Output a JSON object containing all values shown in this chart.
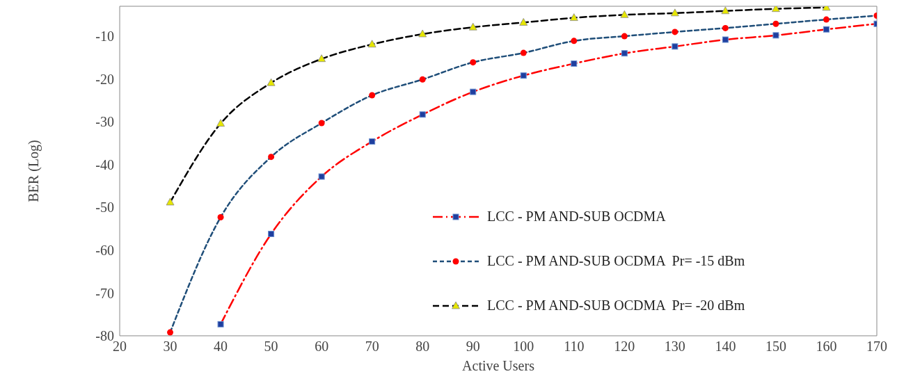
{
  "chart_data": {
    "type": "line",
    "xlabel": "Active Users",
    "ylabel": "BER (Log)",
    "x": [
      30,
      40,
      50,
      60,
      70,
      80,
      90,
      100,
      110,
      120,
      130,
      140,
      150,
      160,
      170
    ],
    "xlim": [
      20,
      170
    ],
    "xticks": [
      20,
      30,
      40,
      50,
      60,
      70,
      80,
      90,
      100,
      110,
      120,
      130,
      140,
      150,
      160,
      170
    ],
    "ylim": [
      -80,
      -3
    ],
    "yticks": [
      -80,
      -70,
      -60,
      -50,
      -40,
      -30,
      -20,
      -10
    ],
    "grid": false,
    "legend": "right",
    "series": [
      {
        "name": "LCC - PM AND-SUB OCDMA",
        "color": "#ff0000",
        "marker": "square",
        "line_style": "dashdot",
        "values": [
          null,
          -77.3,
          -56.2,
          -42.8,
          -34.6,
          -28.3,
          -23.0,
          -19.2,
          -16.4,
          -14.0,
          -12.4,
          -10.8,
          -9.8,
          -8.4,
          -7.1
        ]
      },
      {
        "name": "LCC - PM AND-SUB OCDMA  Pr= -15 dBm",
        "color": "#1f4e79",
        "marker": "circle",
        "line_style": "dashed",
        "values": [
          -79.2,
          -52.3,
          -38.2,
          -30.3,
          -23.8,
          -20.1,
          -16.1,
          -13.9,
          -11.1,
          -10.0,
          -9.0,
          -8.1,
          -7.1,
          -6.1,
          -5.2
        ]
      },
      {
        "name": "LCC - PM AND-SUB OCDMA  Pr= -20 dBm",
        "color": "#000000",
        "marker": "triangle",
        "line_style": "longdash",
        "values": [
          -48.8,
          -30.4,
          -20.9,
          -15.3,
          -11.9,
          -9.5,
          -7.9,
          -6.8,
          -5.7,
          -5.0,
          -4.6,
          -4.1,
          -3.6,
          -3.3,
          null
        ]
      }
    ]
  }
}
